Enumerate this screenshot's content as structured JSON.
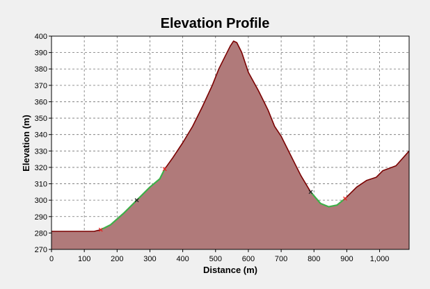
{
  "chart_data": {
    "type": "area",
    "title": "Elevation Profile",
    "xlabel": "Distance (m)",
    "ylabel": "Elevation (m)",
    "xlim": [
      0,
      1090
    ],
    "ylim": [
      270,
      400
    ],
    "x_ticks": [
      0,
      100,
      200,
      300,
      400,
      500,
      600,
      700,
      800,
      900,
      1000
    ],
    "x_tick_labels": [
      "0",
      "100",
      "200",
      "300",
      "400",
      "500",
      "600",
      "700",
      "800",
      "900",
      "1,000"
    ],
    "y_ticks": [
      270,
      280,
      290,
      300,
      310,
      320,
      330,
      340,
      350,
      360,
      370,
      380,
      390,
      400
    ],
    "grid": true,
    "series": [
      {
        "x": [
          0,
          50,
          100,
          130,
          150,
          180,
          220,
          260,
          300,
          330,
          345,
          370,
          400,
          430,
          460,
          490,
          510,
          530,
          545,
          555,
          565,
          580,
          600,
          630,
          660,
          680,
          700,
          730,
          760,
          790,
          820,
          845,
          870,
          895,
          930,
          960,
          990,
          1010,
          1050,
          1090
        ],
        "y": [
          281,
          281,
          281,
          281,
          282,
          285,
          292,
          300,
          308,
          313,
          319,
          326,
          335,
          345,
          357,
          370,
          380,
          388,
          394,
          397,
          396,
          390,
          378,
          367,
          355,
          345,
          339,
          327,
          315,
          305,
          298,
          296,
          297,
          301,
          308,
          312,
          314,
          318,
          321,
          330
        ]
      }
    ],
    "highlight_ranges": [
      [
        150,
        345
      ],
      [
        790,
        895
      ]
    ],
    "markers": [
      {
        "x": 150,
        "y": 282,
        "color": "#e82020"
      },
      {
        "x": 260,
        "y": 300,
        "color": "#222222"
      },
      {
        "x": 345,
        "y": 319,
        "color": "#e82020"
      },
      {
        "x": 790,
        "y": 305,
        "color": "#222222"
      },
      {
        "x": 895,
        "y": 301,
        "color": "#e82020"
      }
    ],
    "colors": {
      "fill": "#b07a7a",
      "line": "#7a0000",
      "highlight": "#3fb04a",
      "plot_background": "#ffffff",
      "grid": "#707070"
    }
  }
}
